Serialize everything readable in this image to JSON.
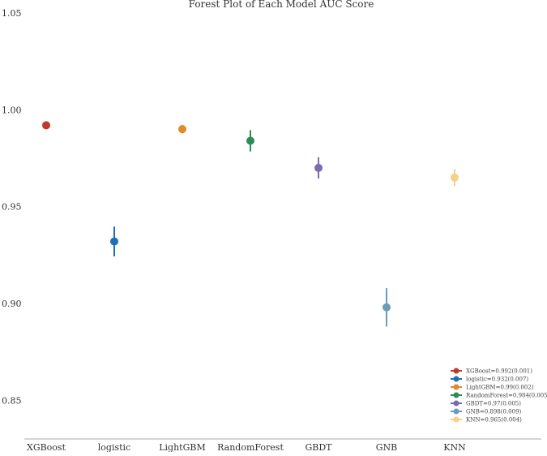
{
  "chart_data": {
    "type": "scatter",
    "title": "Forest Plot of Each Model AUC Score",
    "xlabel": "",
    "ylabel": "",
    "categories": [
      "XGBoost",
      "logistic",
      "LightGBM",
      "RandomForest",
      "GBDT",
      "GNB",
      "KNN"
    ],
    "values": [
      0.992,
      0.932,
      0.99,
      0.984,
      0.97,
      0.898,
      0.965
    ],
    "errors": [
      0.001,
      0.007,
      0.002,
      0.005,
      0.005,
      0.009,
      0.004
    ],
    "ylim": [
      0.83,
      1.05
    ],
    "yticks": [
      0.85,
      0.9,
      0.95,
      1.0,
      1.05
    ],
    "ytick_labels": [
      "0.85",
      "0.90",
      "0.95",
      "1.00",
      "1.05"
    ],
    "grid": false,
    "legend_position": "bottom-right",
    "legend": [
      "XGBoost=0.992(0.001)",
      "logistic=0.932(0.007)",
      "LightGBM=0.99(0.002)",
      "RandomForest=0.984(0.005)",
      "GBDT=0.97(0.005)",
      "GNB=0.898(0.009)",
      "KNN=0.965(0.004)"
    ],
    "colors": [
      "#c0392b",
      "#1f6fb5",
      "#e08a2c",
      "#2e8b57",
      "#7a6bb0",
      "#6b9bb8",
      "#f7cf86"
    ]
  }
}
